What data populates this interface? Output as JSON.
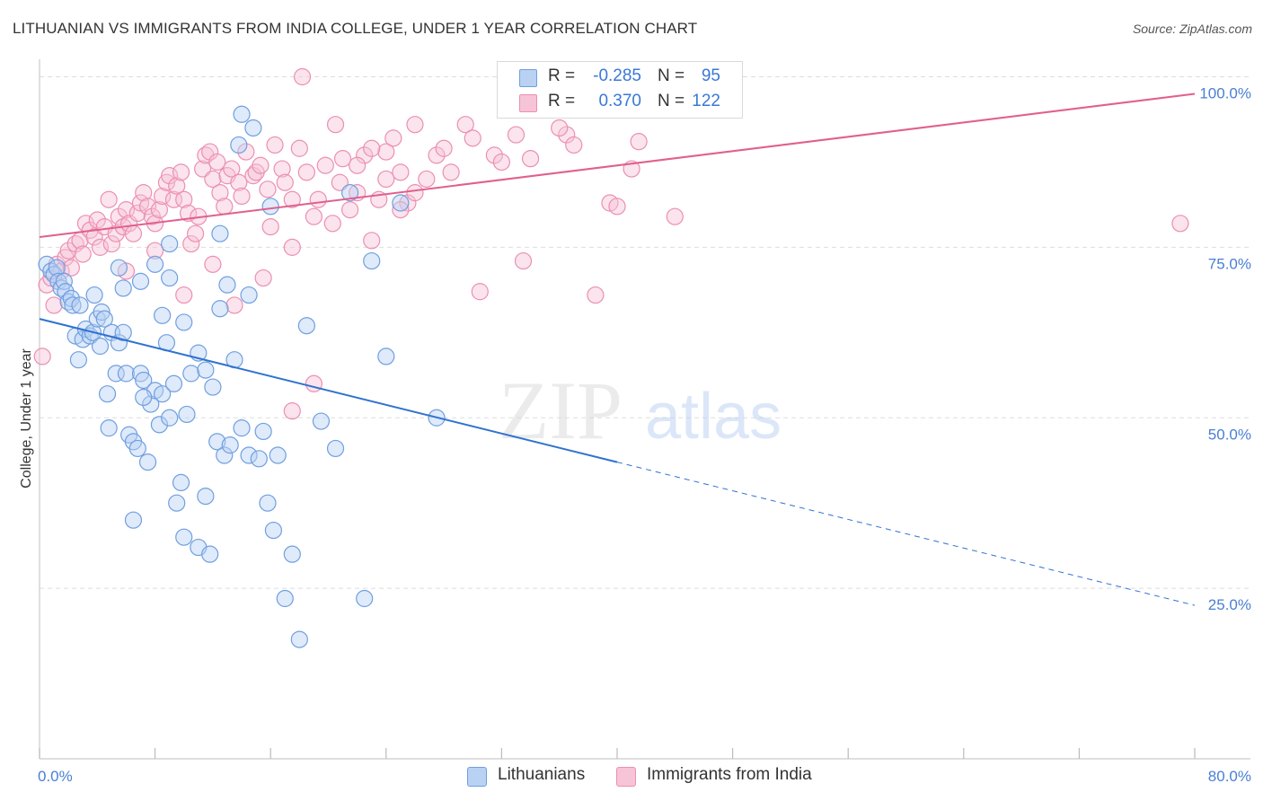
{
  "title": "LITHUANIAN VS IMMIGRANTS FROM INDIA COLLEGE, UNDER 1 YEAR CORRELATION CHART",
  "source": "Source: ZipAtlas.com",
  "watermark": {
    "zip": "ZIP",
    "atlas": "atlas"
  },
  "colors": {
    "blue": "#6f9fe0",
    "blue_fill": "#b9d1f3",
    "blue_line": "#2f72d0",
    "pink": "#ec8fb0",
    "pink_fill": "#f6c4d6",
    "pink_line": "#e0608d",
    "tick_text": "#4a7fd4",
    "grid": "#dddddd"
  },
  "legend": {
    "rows": [
      {
        "r_label": "R =",
        "r_value": "-0.285",
        "n_label": "N =",
        "n_value": "95",
        "color": "#b9d1f3",
        "border": "#6f9fe0"
      },
      {
        "r_label": "R =",
        "r_value": "0.370",
        "n_label": "N =",
        "n_value": "122",
        "color": "#f6c4d6",
        "border": "#ec8fb0"
      }
    ]
  },
  "bottom_legend": [
    {
      "label": "Lithuanians",
      "color": "#b9d1f3",
      "border": "#6f9fe0"
    },
    {
      "label": "Immigrants from India",
      "color": "#f6c4d6",
      "border": "#ec8fb0"
    }
  ],
  "chart_data": {
    "type": "scatter",
    "title": "LITHUANIAN VS IMMIGRANTS FROM INDIA COLLEGE, UNDER 1 YEAR CORRELATION CHART",
    "xlabel": "",
    "ylabel": "College, Under 1 year",
    "xlim": [
      0,
      80
    ],
    "ylim": [
      0,
      100
    ],
    "x_tick_labels": [
      "0.0%",
      "80.0%"
    ],
    "y_ticks": [
      25,
      50,
      75,
      100
    ],
    "y_tick_labels": [
      "25.0%",
      "50.0%",
      "75.0%",
      "100.0%"
    ],
    "series": [
      {
        "name": "Lithuanians",
        "r": -0.285,
        "n": 95,
        "trend": {
          "x0": 0,
          "y0": 64.5,
          "x1": 40,
          "y1": 43.5,
          "dash_x1": 80,
          "dash_y1": 22.5
        },
        "points": [
          [
            0.5,
            72.5
          ],
          [
            0.8,
            71.5
          ],
          [
            1.0,
            71.0
          ],
          [
            1.2,
            72.0
          ],
          [
            1.3,
            70.0
          ],
          [
            1.5,
            69.0
          ],
          [
            1.7,
            70.0
          ],
          [
            1.8,
            68.5
          ],
          [
            2.0,
            67.0
          ],
          [
            2.2,
            67.5
          ],
          [
            2.3,
            66.5
          ],
          [
            2.5,
            62.0
          ],
          [
            2.7,
            58.5
          ],
          [
            2.8,
            66.5
          ],
          [
            3.0,
            61.5
          ],
          [
            3.2,
            63.0
          ],
          [
            3.5,
            62.0
          ],
          [
            3.7,
            62.5
          ],
          [
            3.8,
            68.0
          ],
          [
            4.0,
            64.5
          ],
          [
            4.2,
            60.5
          ],
          [
            4.3,
            65.5
          ],
          [
            4.5,
            64.5
          ],
          [
            4.7,
            53.5
          ],
          [
            5.0,
            62.5
          ],
          [
            5.3,
            56.5
          ],
          [
            5.5,
            61.0
          ],
          [
            5.8,
            62.5
          ],
          [
            6.0,
            56.5
          ],
          [
            6.2,
            47.5
          ],
          [
            6.5,
            46.5
          ],
          [
            6.8,
            45.5
          ],
          [
            7.0,
            56.5
          ],
          [
            7.2,
            55.5
          ],
          [
            7.5,
            43.5
          ],
          [
            7.7,
            52.0
          ],
          [
            8.0,
            54.0
          ],
          [
            8.3,
            49.0
          ],
          [
            8.5,
            53.5
          ],
          [
            8.8,
            61.0
          ],
          [
            9.0,
            50.0
          ],
          [
            9.3,
            55.0
          ],
          [
            9.5,
            37.5
          ],
          [
            9.8,
            40.5
          ],
          [
            10.0,
            32.5
          ],
          [
            10.2,
            50.5
          ],
          [
            10.5,
            56.5
          ],
          [
            11.0,
            31.0
          ],
          [
            11.5,
            38.5
          ],
          [
            11.8,
            30.0
          ],
          [
            12.0,
            54.5
          ],
          [
            12.3,
            46.5
          ],
          [
            12.8,
            44.5
          ],
          [
            13.2,
            46.0
          ],
          [
            13.5,
            58.5
          ],
          [
            14.0,
            48.5
          ],
          [
            14.5,
            44.5
          ],
          [
            15.2,
            44.0
          ],
          [
            15.8,
            37.5
          ],
          [
            16.2,
            33.5
          ],
          [
            16.5,
            44.5
          ],
          [
            17.0,
            23.5
          ],
          [
            17.5,
            30.0
          ],
          [
            18.5,
            63.5
          ],
          [
            19.5,
            49.5
          ],
          [
            20.5,
            45.5
          ],
          [
            21.5,
            83.0
          ],
          [
            22.5,
            23.5
          ],
          [
            23.0,
            73.0
          ],
          [
            24.0,
            59.0
          ],
          [
            25.0,
            81.5
          ],
          [
            27.5,
            50.0
          ],
          [
            5.5,
            72.0
          ],
          [
            5.8,
            69.0
          ],
          [
            7.0,
            70.0
          ],
          [
            8.0,
            72.5
          ],
          [
            9.0,
            70.5
          ],
          [
            10.0,
            64.0
          ],
          [
            11.0,
            59.5
          ],
          [
            11.5,
            57.0
          ],
          [
            13.0,
            69.5
          ],
          [
            14.5,
            68.0
          ],
          [
            16.0,
            81.0
          ],
          [
            15.5,
            48.0
          ],
          [
            18.0,
            17.5
          ],
          [
            6.5,
            35.0
          ],
          [
            4.8,
            48.5
          ],
          [
            7.2,
            53.0
          ],
          [
            8.5,
            65.0
          ],
          [
            12.5,
            66.0
          ],
          [
            14.0,
            94.5
          ],
          [
            14.8,
            92.5
          ],
          [
            13.8,
            90.0
          ],
          [
            12.5,
            77.0
          ],
          [
            9.0,
            75.5
          ]
        ]
      },
      {
        "name": "Immigrants from India",
        "r": 0.37,
        "n": 122,
        "trend": {
          "x0": 0,
          "y0": 76.5,
          "x1": 80,
          "y1": 97.5
        },
        "points": [
          [
            0.2,
            59.0
          ],
          [
            0.5,
            69.5
          ],
          [
            0.8,
            70.5
          ],
          [
            1.0,
            66.5
          ],
          [
            1.2,
            72.5
          ],
          [
            1.5,
            71.5
          ],
          [
            1.8,
            73.5
          ],
          [
            2.0,
            74.5
          ],
          [
            2.2,
            72.0
          ],
          [
            2.5,
            75.5
          ],
          [
            2.8,
            76.0
          ],
          [
            3.0,
            74.0
          ],
          [
            3.2,
            78.5
          ],
          [
            3.5,
            77.5
          ],
          [
            3.8,
            76.5
          ],
          [
            4.0,
            79.0
          ],
          [
            4.2,
            75.0
          ],
          [
            4.5,
            78.0
          ],
          [
            4.8,
            82.0
          ],
          [
            5.0,
            75.5
          ],
          [
            5.3,
            77.0
          ],
          [
            5.5,
            79.5
          ],
          [
            5.8,
            78.0
          ],
          [
            6.0,
            80.5
          ],
          [
            6.2,
            78.5
          ],
          [
            6.5,
            77.0
          ],
          [
            6.8,
            80.0
          ],
          [
            7.0,
            81.5
          ],
          [
            7.2,
            83.0
          ],
          [
            7.5,
            81.0
          ],
          [
            7.8,
            79.5
          ],
          [
            8.0,
            78.5
          ],
          [
            8.3,
            80.5
          ],
          [
            8.5,
            82.5
          ],
          [
            8.8,
            84.5
          ],
          [
            9.0,
            85.5
          ],
          [
            9.3,
            82.0
          ],
          [
            9.5,
            84.0
          ],
          [
            9.8,
            86.0
          ],
          [
            10.0,
            82.0
          ],
          [
            10.3,
            80.0
          ],
          [
            10.5,
            75.5
          ],
          [
            10.8,
            77.0
          ],
          [
            11.0,
            79.5
          ],
          [
            11.3,
            86.5
          ],
          [
            11.5,
            88.5
          ],
          [
            11.8,
            89.0
          ],
          [
            12.0,
            85.0
          ],
          [
            12.3,
            87.5
          ],
          [
            12.5,
            83.0
          ],
          [
            12.8,
            81.0
          ],
          [
            13.0,
            85.5
          ],
          [
            13.3,
            86.5
          ],
          [
            13.8,
            84.5
          ],
          [
            14.0,
            82.5
          ],
          [
            14.3,
            89.0
          ],
          [
            14.8,
            85.5
          ],
          [
            15.0,
            86.0
          ],
          [
            15.3,
            87.0
          ],
          [
            15.8,
            83.5
          ],
          [
            16.0,
            78.0
          ],
          [
            16.3,
            90.0
          ],
          [
            16.8,
            86.5
          ],
          [
            17.0,
            84.5
          ],
          [
            17.5,
            82.0
          ],
          [
            18.0,
            89.5
          ],
          [
            18.5,
            86.0
          ],
          [
            19.0,
            79.5
          ],
          [
            19.3,
            82.0
          ],
          [
            19.8,
            87.0
          ],
          [
            20.3,
            78.5
          ],
          [
            20.8,
            84.5
          ],
          [
            21.0,
            88.0
          ],
          [
            21.5,
            80.5
          ],
          [
            22.0,
            83.0
          ],
          [
            22.5,
            88.5
          ],
          [
            23.0,
            76.0
          ],
          [
            23.5,
            82.0
          ],
          [
            24.0,
            89.0
          ],
          [
            24.5,
            91.0
          ],
          [
            25.0,
            86.0
          ],
          [
            25.5,
            81.5
          ],
          [
            26.0,
            83.0
          ],
          [
            26.8,
            85.0
          ],
          [
            27.5,
            88.5
          ],
          [
            28.5,
            86.0
          ],
          [
            29.5,
            93.0
          ],
          [
            30.0,
            91.0
          ],
          [
            31.5,
            88.5
          ],
          [
            34.0,
            88.0
          ],
          [
            36.5,
            91.5
          ],
          [
            37.0,
            90.0
          ],
          [
            39.5,
            81.5
          ],
          [
            40.0,
            81.0
          ],
          [
            41.0,
            86.5
          ],
          [
            41.5,
            90.5
          ],
          [
            44.0,
            79.5
          ],
          [
            79.0,
            78.5
          ],
          [
            18.2,
            100.0
          ],
          [
            30.5,
            68.5
          ],
          [
            33.5,
            73.0
          ],
          [
            38.5,
            68.0
          ],
          [
            6.0,
            71.5
          ],
          [
            8.0,
            74.5
          ],
          [
            10.0,
            68.0
          ],
          [
            12.0,
            72.5
          ],
          [
            13.5,
            66.5
          ],
          [
            15.5,
            70.5
          ],
          [
            17.5,
            75.0
          ],
          [
            19.0,
            55.0
          ],
          [
            17.5,
            51.0
          ],
          [
            35.0,
            95.5
          ],
          [
            33.0,
            91.5
          ],
          [
            36.0,
            92.5
          ],
          [
            26.0,
            93.0
          ],
          [
            28.0,
            89.5
          ],
          [
            20.5,
            93.0
          ],
          [
            22.0,
            87.0
          ],
          [
            24.0,
            85.0
          ],
          [
            32.0,
            87.5
          ],
          [
            25.0,
            80.5
          ],
          [
            23.0,
            89.5
          ]
        ]
      }
    ]
  }
}
